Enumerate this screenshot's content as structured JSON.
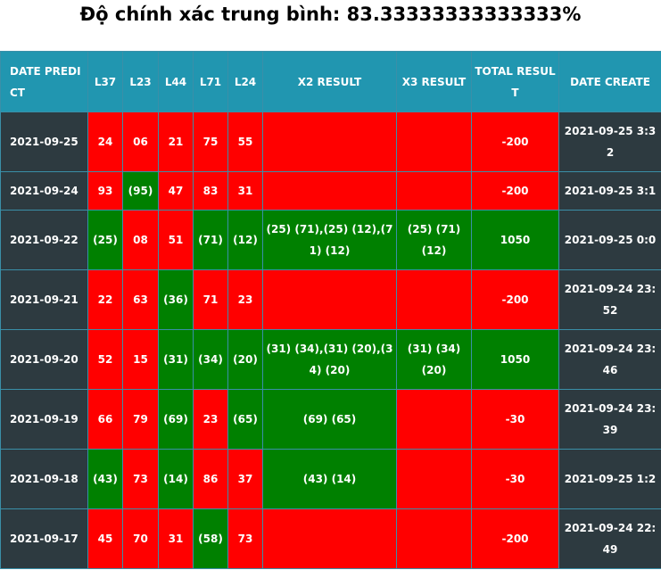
{
  "title": "Độ chính xác trung bình: 83.33333333333333%",
  "headers": [
    "DATE PREDICT",
    "L37",
    "L23",
    "L44",
    "L71",
    "L24",
    "X2 RESULT",
    "X3 RESULT",
    "TOTAL RESULT",
    "DATE CREATE"
  ],
  "colors": {
    "header": "#2196b0",
    "dark": "#2d3a40",
    "red": "#ff0000",
    "green": "#008000",
    "border": "#3a8fa8"
  },
  "rows": [
    {
      "date": "2021-09-25",
      "h": 67,
      "nums": [
        [
          "24",
          "red"
        ],
        [
          "06",
          "red"
        ],
        [
          "21",
          "red"
        ],
        [
          "75",
          "red"
        ],
        [
          "55",
          "red"
        ]
      ],
      "x2": [
        "",
        "red"
      ],
      "x3": [
        "",
        "red"
      ],
      "total": [
        "-200",
        "red"
      ],
      "created": "2021-09-25 3:32"
    },
    {
      "date": "2021-09-24",
      "h": 43,
      "nums": [
        [
          "93",
          "red"
        ],
        [
          "(95)",
          "green"
        ],
        [
          "47",
          "red"
        ],
        [
          "83",
          "red"
        ],
        [
          "31",
          "red"
        ]
      ],
      "x2": [
        "",
        "red"
      ],
      "x3": [
        "",
        "red"
      ],
      "total": [
        "-200",
        "red"
      ],
      "created": "2021-09-25 3:1"
    },
    {
      "date": "2021-09-22",
      "h": 67,
      "nums": [
        [
          "(25)",
          "green"
        ],
        [
          "08",
          "red"
        ],
        [
          "51",
          "red"
        ],
        [
          "(71)",
          "green"
        ],
        [
          "(12)",
          "green"
        ]
      ],
      "x2": [
        "(25) (71),(25) (12),(71) (12)",
        "green"
      ],
      "x3": [
        "(25) (71) (12)",
        "green"
      ],
      "total": [
        "1050",
        "green"
      ],
      "created": "2021-09-25 0:0"
    },
    {
      "date": "2021-09-21",
      "h": 67,
      "nums": [
        [
          "22",
          "red"
        ],
        [
          "63",
          "red"
        ],
        [
          "(36)",
          "green"
        ],
        [
          "71",
          "red"
        ],
        [
          "23",
          "red"
        ]
      ],
      "x2": [
        "",
        "red"
      ],
      "x3": [
        "",
        "red"
      ],
      "total": [
        "-200",
        "red"
      ],
      "created": "2021-09-24 23:52"
    },
    {
      "date": "2021-09-20",
      "h": 67,
      "nums": [
        [
          "52",
          "red"
        ],
        [
          "15",
          "red"
        ],
        [
          "(31)",
          "green"
        ],
        [
          "(34)",
          "green"
        ],
        [
          "(20)",
          "green"
        ]
      ],
      "x2": [
        "(31) (34),(31) (20),(34) (20)",
        "green"
      ],
      "x3": [
        "(31) (34) (20)",
        "green"
      ],
      "total": [
        "1050",
        "green"
      ],
      "created": "2021-09-24 23:46"
    },
    {
      "date": "2021-09-19",
      "h": 67,
      "nums": [
        [
          "66",
          "red"
        ],
        [
          "79",
          "red"
        ],
        [
          "(69)",
          "green"
        ],
        [
          "23",
          "red"
        ],
        [
          "(65)",
          "green"
        ]
      ],
      "x2": [
        "(69) (65)",
        "green"
      ],
      "x3": [
        "",
        "red"
      ],
      "total": [
        "-30",
        "red"
      ],
      "created": "2021-09-24 23:39"
    },
    {
      "date": "2021-09-18",
      "h": 67,
      "nums": [
        [
          "(43)",
          "green"
        ],
        [
          "73",
          "red"
        ],
        [
          "(14)",
          "green"
        ],
        [
          "86",
          "red"
        ],
        [
          "37",
          "red"
        ]
      ],
      "x2": [
        "(43) (14)",
        "green"
      ],
      "x3": [
        "",
        "red"
      ],
      "total": [
        "-30",
        "red"
      ],
      "created": "2021-09-25 1:2"
    },
    {
      "date": "2021-09-17",
      "h": 67,
      "nums": [
        [
          "45",
          "red"
        ],
        [
          "70",
          "red"
        ],
        [
          "31",
          "red"
        ],
        [
          "(58)",
          "green"
        ],
        [
          "73",
          "red"
        ]
      ],
      "x2": [
        "",
        "red"
      ],
      "x3": [
        "",
        "red"
      ],
      "total": [
        "-200",
        "red"
      ],
      "created": "2021-09-24 22:49"
    }
  ]
}
